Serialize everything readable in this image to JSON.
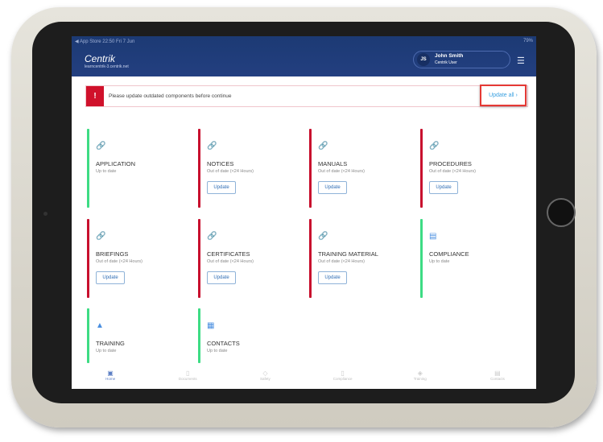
{
  "status_bar": {
    "left": "◀ App Store  22:50  Fri 7 Jun",
    "right": "79%"
  },
  "header": {
    "logo": "Centrik",
    "domain": "learncentrik-3.centrik.net",
    "user_initials": "JS",
    "user_name": "John Smith",
    "user_role": "Centrik User",
    "menu_icon": "hamburger-icon"
  },
  "banner": {
    "message": "Please update outdated components before continue",
    "action": "Update all ›",
    "alert_icon": "!"
  },
  "colors": {
    "ok": "#3ddc84",
    "outdated": "#c8102e",
    "header": "#1f3c78"
  },
  "cards": [
    {
      "title": "APPLICATION",
      "status": "Up to date",
      "ok": true,
      "icon": "paperclip-icon"
    },
    {
      "title": "NOTICES",
      "status": "Out of date (<24 Hours)",
      "ok": false,
      "button": "Update",
      "icon": "paperclip-icon"
    },
    {
      "title": "MANUALS",
      "status": "Out of date (<24 Hours)",
      "ok": false,
      "button": "Update",
      "icon": "paperclip-icon"
    },
    {
      "title": "PROCEDURES",
      "status": "Out of date (<24 Hours)",
      "ok": false,
      "button": "Update",
      "icon": "paperclip-icon"
    },
    {
      "title": "BRIEFINGS",
      "status": "Out of date (<24 Hours)",
      "ok": false,
      "button": "Update",
      "icon": "paperclip-icon"
    },
    {
      "title": "CERTIFICATES",
      "status": "Out of date (<24 Hours)",
      "ok": false,
      "button": "Update",
      "icon": "paperclip-icon"
    },
    {
      "title": "TRAINING MATERIAL",
      "status": "Out of date (<24 Hours)",
      "ok": false,
      "button": "Update",
      "icon": "paperclip-icon"
    },
    {
      "title": "COMPLIANCE",
      "status": "Up to date",
      "ok": true,
      "icon": "document-icon"
    },
    {
      "title": "TRAINING",
      "status": "Up to date",
      "ok": true,
      "icon": "graduation-cap-icon"
    },
    {
      "title": "CONTACTS",
      "status": "Up to date",
      "ok": true,
      "icon": "contacts-icon"
    }
  ],
  "nav": [
    {
      "label": "Home",
      "active": true
    },
    {
      "label": "Documents"
    },
    {
      "label": "Safety"
    },
    {
      "label": "Compliance"
    },
    {
      "label": "Training"
    },
    {
      "label": "Contacts"
    }
  ]
}
